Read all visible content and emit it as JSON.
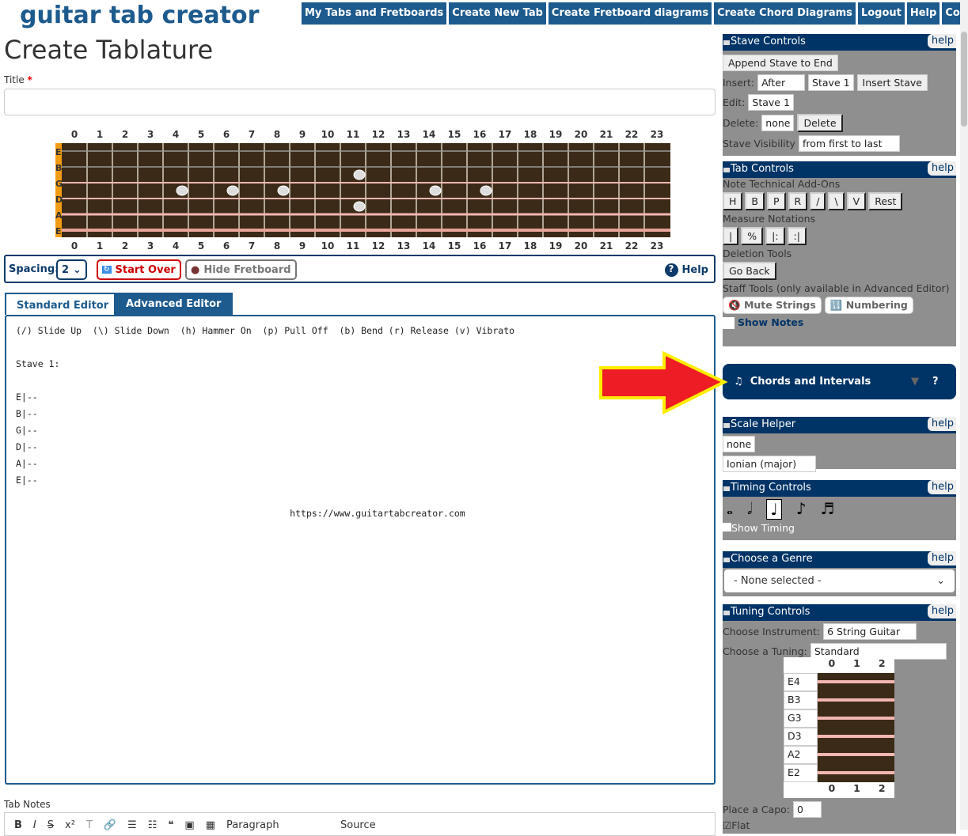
{
  "logo": "guitar tab creator",
  "nav": [
    "My Tabs and Fretboards",
    "Create New Tab",
    "Create Fretboard diagrams",
    "Create Chord Diagrams",
    "Logout",
    "Help",
    "Contact Us"
  ],
  "page_title": "Create Tablature",
  "title_label": "Title",
  "title_required": "*",
  "title_value": "",
  "fretboard": {
    "frets": [
      "0",
      "1",
      "2",
      "3",
      "4",
      "5",
      "6",
      "7",
      "8",
      "9",
      "10",
      "11",
      "12",
      "13",
      "14",
      "15",
      "16",
      "17",
      "18",
      "19",
      "20",
      "21",
      "22",
      "23"
    ],
    "strings": [
      "E",
      "B",
      "G",
      "D",
      "A",
      "E"
    ],
    "accent": "#f39c12"
  },
  "controls": {
    "spacing_label": "Spacing:",
    "spacing_value": "2",
    "start_over": "Start Over",
    "hide_fretboard": "Hide Fretboard",
    "help": "Help"
  },
  "tabs": [
    "Standard Editor",
    "Advanced Editor"
  ],
  "editor": {
    "text": "(/) Slide Up  (\\) Slide Down  (h) Hammer On  (p) Pull Off  (b) Bend (r) Release (v) Vibrato\n\nStave 1:\n\nE|--\nB|--\nG|--\nD|--\nA|--\nE|--\n\n                                                  https://www.guitartabcreator.com"
  },
  "tab_notes_label": "Tab Notes",
  "toolbar": {
    "paragraph": "Paragraph",
    "source": "Source",
    "items": [
      "B",
      "I",
      "S",
      "x²",
      "T"
    ]
  },
  "stave": {
    "title": "Stave Controls",
    "help": "help",
    "append": "Append Stave to End",
    "insert_label": "Insert:",
    "insert_pos": "After",
    "insert_stave": "Stave 1",
    "insert_btn": "Insert Stave",
    "edit_label": "Edit:",
    "edit_value": "Stave 1",
    "delete_label": "Delete:",
    "delete_value": "none",
    "delete_btn": "Delete",
    "vis_label": "Stave Visibility",
    "vis_value": "from first to last"
  },
  "tabctl": {
    "title": "Tab Controls",
    "help": "help",
    "addons_label": "Note Technical Add-Ons",
    "addons": [
      "H",
      "B",
      "P",
      "R",
      "/",
      "\\",
      "V",
      "Rest"
    ],
    "measure_label": "Measure Notations",
    "measure": [
      "|",
      "%",
      "|:",
      ":|"
    ],
    "deletion_label": "Deletion Tools",
    "go_back": "Go Back",
    "staff_label": "Staff Tools (only available in Advanced Editor)",
    "mute": "Mute Strings",
    "numbering": "Numbering",
    "show_notes": "Show Notes"
  },
  "chords": {
    "title": "Chords and Intervals",
    "q": "?"
  },
  "scale": {
    "title": "Scale Helper",
    "help": "help",
    "root": "none",
    "mode": "Ionian (major)"
  },
  "timing": {
    "title": "Timing Controls",
    "help": "help",
    "show_timing": "Show Timing",
    "selected": 2
  },
  "genre": {
    "title": "Choose a Genre",
    "help": "help",
    "value": "- None selected -"
  },
  "tuning": {
    "title": "Tuning Controls",
    "help": "help",
    "instrument_label": "Choose Instrument:",
    "instrument": "6 String Guitar",
    "tuning_label": "Choose a Tuning:",
    "tuning": "Standard",
    "frets": [
      "0",
      "1",
      "2"
    ],
    "notes": [
      "E4",
      "B3",
      "G3",
      "D3",
      "A2",
      "E2"
    ],
    "capo_label": "Place a Capo:",
    "capo": "0",
    "flat_label": "Flat",
    "flat_checked": true
  }
}
